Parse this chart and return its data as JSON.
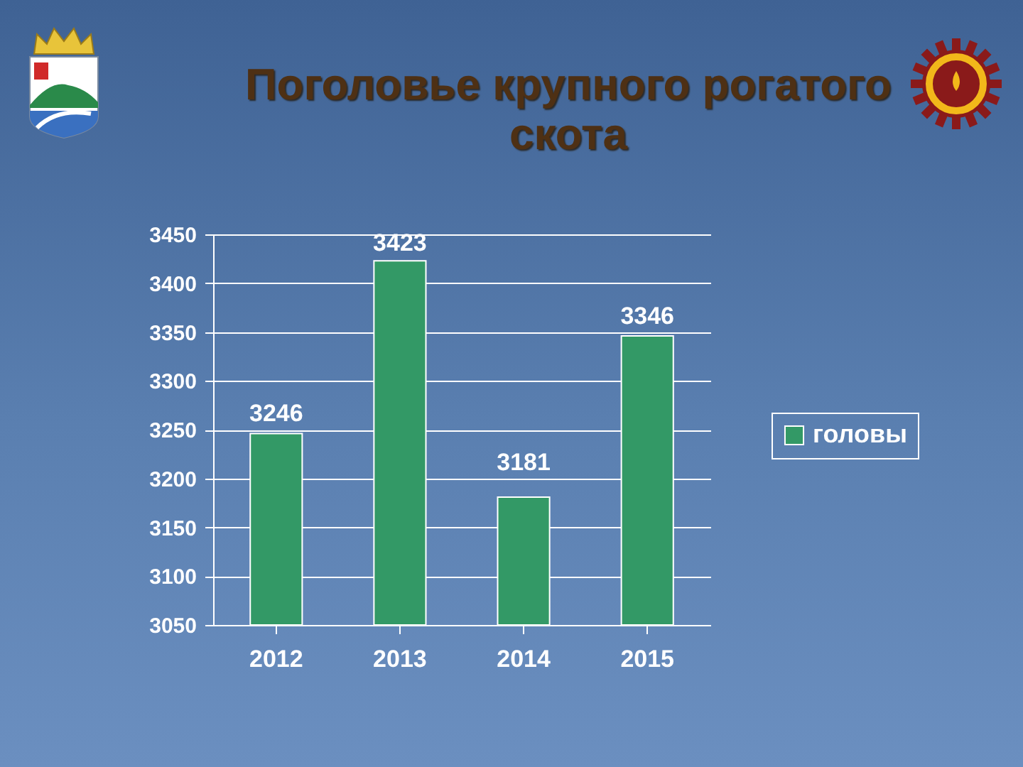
{
  "chart_data": {
    "type": "bar",
    "title": "Поголовье крупного рогатого скота",
    "categories": [
      "2012",
      "2013",
      "2014",
      "2015"
    ],
    "series": [
      {
        "name": "головы",
        "color": "#339966",
        "values": [
          3246,
          3423,
          3181,
          3346
        ]
      }
    ],
    "ylim": [
      3050,
      3450
    ],
    "yticks": [
      3050,
      3100,
      3150,
      3200,
      3250,
      3300,
      3350,
      3400,
      3450
    ],
    "grid": "y",
    "legend": "right",
    "data_labels": true
  }
}
